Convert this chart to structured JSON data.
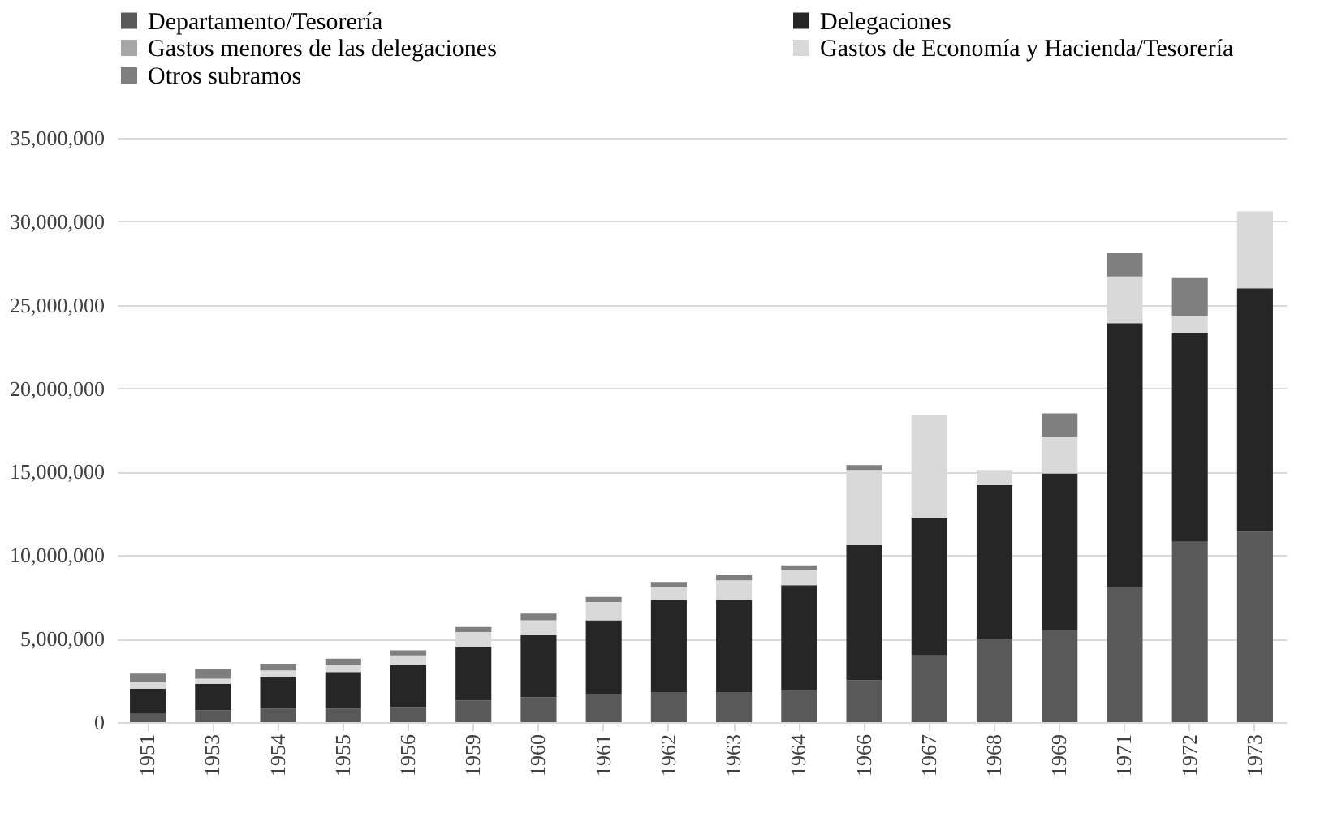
{
  "chart_data": {
    "type": "bar",
    "stacked": true,
    "categories": [
      "1951",
      "1953",
      "1954",
      "1955",
      "1956",
      "1959",
      "1960",
      "1961",
      "1962",
      "1963",
      "1964",
      "1966",
      "1967",
      "1968",
      "1969",
      "1971",
      "1972",
      "1973"
    ],
    "series": [
      {
        "name": "Departamento/Tesorería",
        "color": "#595959",
        "values": [
          500000,
          700000,
          800000,
          800000,
          900000,
          1300000,
          1500000,
          1700000,
          1800000,
          1800000,
          1900000,
          2500000,
          4000000,
          5000000,
          5500000,
          8100000,
          10800000,
          11400000
        ]
      },
      {
        "name": "Delegaciones",
        "color": "#262626",
        "values": [
          1500000,
          1600000,
          1900000,
          2200000,
          2500000,
          3200000,
          3700000,
          4400000,
          5500000,
          5500000,
          6300000,
          8100000,
          8200000,
          9200000,
          9400000,
          15800000,
          12500000,
          14600000
        ]
      },
      {
        "name": "Gastos menores de las delegaciones",
        "color": "#a6a6a6",
        "values": [
          0,
          0,
          0,
          0,
          0,
          0,
          0,
          0,
          0,
          0,
          0,
          0,
          0,
          0,
          0,
          0,
          0,
          0
        ]
      },
      {
        "name": "Gastos de Economía y Hacienda/Tesorería",
        "color": "#d9d9d9",
        "values": [
          400000,
          300000,
          400000,
          400000,
          600000,
          900000,
          900000,
          1100000,
          800000,
          1200000,
          900000,
          4500000,
          6200000,
          900000,
          2200000,
          2800000,
          1000000,
          4600000
        ]
      },
      {
        "name": "Otros subramos",
        "color": "#7f7f7f",
        "values": [
          500000,
          600000,
          400000,
          400000,
          300000,
          300000,
          400000,
          300000,
          300000,
          300000,
          300000,
          300000,
          0,
          0,
          1400000,
          1400000,
          2300000,
          0
        ]
      }
    ],
    "ylim": [
      0,
      35000000
    ],
    "yticks": [
      0,
      {
        "value": 5000000,
        "label": "5,000,000"
      },
      {
        "value": 10000000,
        "label": "10,000,000"
      },
      {
        "value": 15000000,
        "label": "15,000,000"
      },
      {
        "value": 20000000,
        "label": "20,000,000"
      },
      {
        "value": 25000000,
        "label": "25,000,000"
      },
      {
        "value": 30000000,
        "label": "30,000,000"
      },
      {
        "value": 35000000,
        "label": "35,000,000"
      }
    ],
    "grid": "y",
    "legend": "top left"
  }
}
